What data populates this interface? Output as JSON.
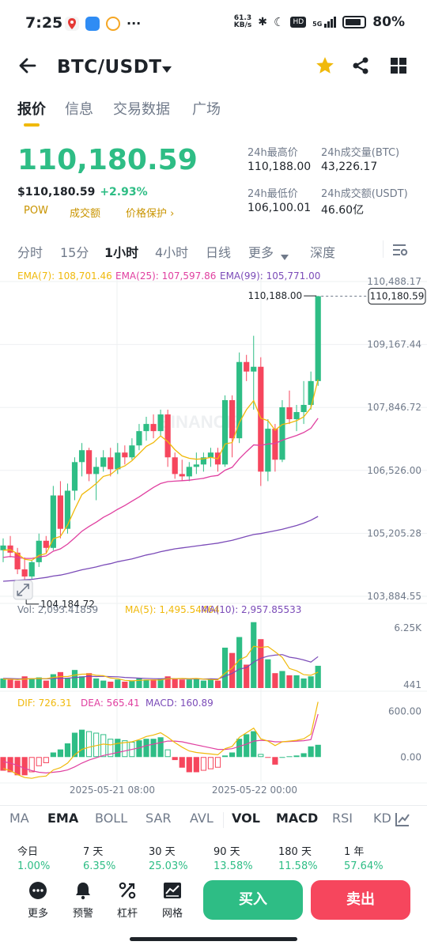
{
  "status_bar": {
    "time": "7:25",
    "net_speed_value": "61.3",
    "net_speed_unit": "KB/s",
    "battery": "80%",
    "network": "5G"
  },
  "header": {
    "pair": "BTC/USDT"
  },
  "tabs": [
    "报价",
    "信息",
    "交易数据",
    "广场"
  ],
  "ticker": {
    "last_price": "110,180.59",
    "usd_price": "$110,180.59",
    "change": "+2.93%",
    "tags": [
      "POW",
      "成交额",
      "价格保护 ›"
    ],
    "high_label": "24h最高价",
    "high": "110,188.00",
    "low_label": "24h最低价",
    "low": "106,100.01",
    "vol_btc_label": "24h成交量(BTC)",
    "vol_btc": "43,226.17",
    "vol_usdt_label": "24h成交额(USDT)",
    "vol_usdt": "46.60亿"
  },
  "timeframes": [
    "分时",
    "15分",
    "1小时",
    "4小时",
    "日线",
    "更多",
    "深度"
  ],
  "chart_data": {
    "type": "candlestick",
    "interval": "1h",
    "ema_legend": {
      "ema7": "EMA(7): 108,701.46",
      "ema25": "EMA(25): 107,597.86",
      "ema99": "EMA(99): 105,771.00"
    },
    "price_axis": [
      "110,488.17",
      "109,167.44",
      "107,846.72",
      "106,526.00",
      "105,205.28",
      "103,884.55"
    ],
    "ylim": [
      103884.55,
      110488.17
    ],
    "current_price_tag": "110,180.59",
    "high_marker": "110,188.00",
    "low_marker": "104,184.72",
    "time_labels": [
      "2025-05-21 08:00",
      "2025-05-22 00:00"
    ],
    "watermark": "BINANCE",
    "candles": [
      [
        104850,
        105100,
        104600,
        104950
      ],
      [
        104950,
        105150,
        104700,
        104800
      ],
      [
        104800,
        104900,
        104350,
        104450
      ],
      [
        104450,
        104700,
        104184.72,
        104300
      ],
      [
        104300,
        104650,
        104250,
        104600
      ],
      [
        104600,
        105200,
        104500,
        105050
      ],
      [
        105050,
        105150,
        104800,
        104900
      ],
      [
        104900,
        106200,
        104850,
        106000
      ],
      [
        106000,
        106300,
        105100,
        105300
      ],
      [
        105300,
        106250,
        105200,
        106100
      ],
      [
        106100,
        106800,
        105900,
        106700
      ],
      [
        106700,
        107100,
        106400,
        106950
      ],
      [
        106950,
        107000,
        106300,
        106450
      ],
      [
        106450,
        106800,
        105900,
        106600
      ],
      [
        106600,
        106950,
        106500,
        106800
      ],
      [
        106800,
        107000,
        106400,
        106550
      ],
      [
        106550,
        107100,
        106450,
        106900
      ],
      [
        106900,
        107050,
        106650,
        106800
      ],
      [
        106800,
        107200,
        106750,
        107050
      ],
      [
        107050,
        107500,
        106950,
        107350
      ],
      [
        107350,
        107650,
        107150,
        107500
      ],
      [
        107500,
        107700,
        107200,
        107350
      ],
      [
        107350,
        107800,
        107250,
        107700
      ],
      [
        107700,
        107800,
        106600,
        106800
      ],
      [
        106800,
        106900,
        106350,
        106450
      ],
      [
        106450,
        106750,
        106300,
        106400
      ],
      [
        106400,
        106700,
        106300,
        106600
      ],
      [
        106600,
        106900,
        106450,
        106650
      ],
      [
        106650,
        106900,
        106500,
        106800
      ],
      [
        106800,
        107000,
        106600,
        106900
      ],
      [
        106900,
        107000,
        106500,
        106650
      ],
      [
        106650,
        108100,
        106600,
        108000
      ],
      [
        108000,
        108100,
        106800,
        107200
      ],
      [
        107200,
        109000,
        107100,
        108800
      ],
      [
        108800,
        108950,
        108400,
        108600
      ],
      [
        108600,
        109350,
        107800,
        108700
      ],
      [
        108700,
        108900,
        106200,
        106500
      ],
      [
        106500,
        107600,
        106300,
        107400
      ],
      [
        107400,
        107500,
        106500,
        106750
      ],
      [
        106750,
        108000,
        106700,
        107850
      ],
      [
        107850,
        108200,
        107500,
        107600
      ],
      [
        107600,
        107900,
        107350,
        107750
      ],
      [
        107750,
        108400,
        107500,
        107900
      ],
      [
        107900,
        108600,
        107800,
        108400
      ],
      [
        108400,
        110188,
        108300,
        110180.59
      ]
    ],
    "ema7": [
      104850,
      104860,
      104780,
      104660,
      104640,
      104740,
      104780,
      105090,
      105140,
      105380,
      105710,
      106020,
      106130,
      106250,
      106400,
      106440,
      106560,
      106620,
      106730,
      106880,
      107030,
      107110,
      107250,
      107130,
      106960,
      106830,
      106780,
      106760,
      106770,
      106800,
      106770,
      107080,
      107110,
      107530,
      107800,
      107990,
      107620,
      107570,
      107370,
      107490,
      107520,
      107570,
      107650,
      107840,
      108430
    ],
    "ema25": [
      104700,
      104720,
      104700,
      104680,
      104680,
      104710,
      104730,
      104830,
      104880,
      104980,
      105110,
      105250,
      105350,
      105440,
      105540,
      105620,
      105710,
      105790,
      105880,
      105970,
      106070,
      106170,
      106250,
      106290,
      106300,
      106310,
      106320,
      106340,
      106360,
      106400,
      106420,
      106530,
      106590,
      106770,
      106920,
      107060,
      107050,
      107080,
      107090,
      107160,
      107210,
      107260,
      107320,
      107410,
      107620
    ],
    "ema99": [
      104200,
      104210,
      104220,
      104230,
      104240,
      104260,
      104280,
      104310,
      104330,
      104360,
      104400,
      104440,
      104470,
      104500,
      104540,
      104570,
      104610,
      104640,
      104670,
      104710,
      104750,
      104780,
      104820,
      104850,
      104880,
      104900,
      104920,
      104940,
      104960,
      104980,
      105000,
      105030,
      105060,
      105100,
      105140,
      105180,
      105200,
      105230,
      105260,
      105290,
      105330,
      105370,
      105420,
      105480,
      105560
    ],
    "volume_legend": {
      "vol": "Vol: 2,093.41859",
      "ma5": "MA(5): 1,495.54464",
      "ma10": "MA(10): 2,957.85533"
    },
    "volume_axis": [
      "6.25K",
      "441"
    ],
    "volume_ylim": [
      0,
      6700
    ],
    "volume": [
      900,
      800,
      700,
      1100,
      900,
      1000,
      700,
      1300,
      1500,
      900,
      1700,
      1100,
      1400,
      900,
      700,
      600,
      800,
      600,
      700,
      900,
      800,
      800,
      900,
      1100,
      900,
      800,
      800,
      900,
      700,
      800,
      700,
      3800,
      3300,
      4800,
      2200,
      6200,
      4600,
      2700,
      1400,
      1600,
      1200,
      1200,
      900,
      1100,
      2093
    ],
    "vol_ma5": [
      850,
      840,
      800,
      850,
      880,
      900,
      880,
      1000,
      1080,
      1080,
      1220,
      1300,
      1320,
      1200,
      1160,
      940,
      880,
      720,
      680,
      720,
      760,
      760,
      760,
      880,
      880,
      900,
      880,
      900,
      840,
      800,
      780,
      1400,
      1860,
      2660,
      2960,
      3940,
      3820,
      3900,
      3420,
      2880,
      1840,
      1620,
      1260,
      1200,
      1495
    ],
    "vol_ma10": [
      900,
      890,
      860,
      870,
      880,
      880,
      860,
      900,
      920,
      930,
      980,
      1040,
      1100,
      1080,
      1100,
      1070,
      1060,
      1000,
      970,
      930,
      910,
      880,
      860,
      900,
      880,
      870,
      850,
      860,
      850,
      860,
      850,
      1110,
      1380,
      1780,
      1920,
      2450,
      2800,
      3000,
      3100,
      3150,
      2900,
      2800,
      2640,
      2440,
      2958
    ],
    "macd_legend": {
      "dif": "DIF: 726.31",
      "dea": "DEA: 565.41",
      "macd": "MACD: 160.89"
    },
    "macd_axis": [
      "600.00",
      "0.00"
    ],
    "macd_ylim": [
      -320,
      700
    ],
    "dif": [
      -150,
      -180,
      -230,
      -270,
      -280,
      -260,
      -250,
      -170,
      -140,
      -80,
      30,
      100,
      130,
      150,
      170,
      160,
      180,
      190,
      200,
      230,
      270,
      290,
      320,
      260,
      190,
      130,
      80,
      60,
      50,
      40,
      30,
      110,
      140,
      260,
      320,
      380,
      240,
      210,
      150,
      200,
      210,
      220,
      240,
      300,
      726
    ],
    "dea": [
      -60,
      -80,
      -110,
      -150,
      -180,
      -200,
      -210,
      -200,
      -190,
      -170,
      -130,
      -80,
      -40,
      -10,
      20,
      40,
      60,
      80,
      100,
      120,
      150,
      170,
      190,
      210,
      210,
      200,
      180,
      160,
      140,
      120,
      100,
      100,
      110,
      140,
      170,
      210,
      220,
      215,
      200,
      200,
      205,
      210,
      215,
      230,
      565
    ],
    "macd_hist": [
      -180,
      -200,
      -240,
      -240,
      -200,
      -120,
      -80,
      60,
      100,
      180,
      320,
      360,
      340,
      320,
      300,
      240,
      240,
      220,
      200,
      220,
      240,
      240,
      260,
      100,
      -40,
      -140,
      -200,
      -200,
      -180,
      -160,
      -140,
      20,
      60,
      240,
      300,
      340,
      40,
      -10,
      -100,
      0,
      10,
      20,
      50,
      140,
      161
    ]
  },
  "indicators": [
    "MA",
    "EMA",
    "BOLL",
    "SAR",
    "AVL",
    "VOL",
    "MACD",
    "RSI",
    "KDJ"
  ],
  "active_indicators": [
    "EMA",
    "VOL",
    "MACD"
  ],
  "performance": [
    {
      "label": "今日",
      "value": "1.00%"
    },
    {
      "label": "7 天",
      "value": "6.35%"
    },
    {
      "label": "30 天",
      "value": "25.03%"
    },
    {
      "label": "90 天",
      "value": "13.58%"
    },
    {
      "label": "180 天",
      "value": "11.58%"
    },
    {
      "label": "1 年",
      "value": "57.64%"
    }
  ],
  "bottom_bar": {
    "more": "更多",
    "alert": "预警",
    "leverage": "杠杆",
    "grid": "网格",
    "buy": "买入",
    "sell": "卖出"
  },
  "colors": {
    "up": "#2ebd85",
    "down": "#f6465d",
    "accent": "#f0b90b",
    "ema7": "#f0b90b",
    "ema25": "#e040a0",
    "ema99": "#7b4bb8"
  }
}
